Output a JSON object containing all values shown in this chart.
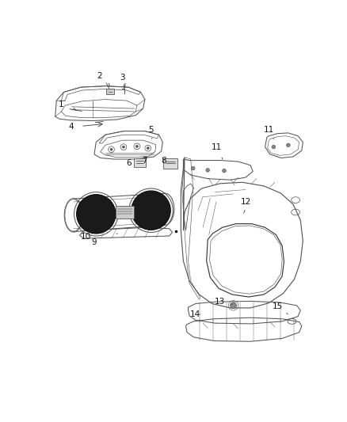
{
  "background_color": "#ffffff",
  "figure_width": 4.38,
  "figure_height": 5.33,
  "dpi": 100,
  "line_color": "#555555",
  "dark_color": "#222222",
  "label_fontsize": 7.5,
  "lw": 0.75
}
